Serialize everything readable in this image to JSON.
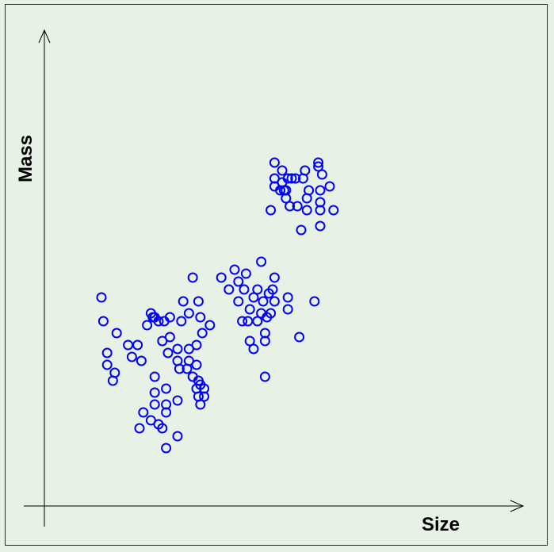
{
  "chart_data": {
    "type": "scatter",
    "xlabel": "Size",
    "ylabel": "Mass",
    "xlim": [
      0,
      10
    ],
    "ylim": [
      0,
      10
    ],
    "axis_ticks": "none",
    "axis_arrows": true,
    "grid": false,
    "legend": "none",
    "marker": "open-circle",
    "colors": {
      "marker": "#0000ff",
      "axis": "#000000",
      "background": "#e8f1e6",
      "frame": "#2a2a2a"
    },
    "points": [
      {
        "x": 1.0,
        "y": 4.9
      },
      {
        "x": 1.05,
        "y": 4.3
      },
      {
        "x": 1.15,
        "y": 3.5
      },
      {
        "x": 1.15,
        "y": 3.2
      },
      {
        "x": 1.3,
        "y": 2.8
      },
      {
        "x": 1.35,
        "y": 3.0
      },
      {
        "x": 1.4,
        "y": 4.0
      },
      {
        "x": 1.8,
        "y": 3.4
      },
      {
        "x": 1.95,
        "y": 3.7
      },
      {
        "x": 2.05,
        "y": 3.3
      },
      {
        "x": 2.2,
        "y": 4.2
      },
      {
        "x": 2.3,
        "y": 4.5
      },
      {
        "x": 2.35,
        "y": 4.4
      },
      {
        "x": 2.4,
        "y": 4.4
      },
      {
        "x": 2.5,
        "y": 4.3
      },
      {
        "x": 2.6,
        "y": 3.8
      },
      {
        "x": 2.65,
        "y": 4.3
      },
      {
        "x": 2.4,
        "y": 2.9
      },
      {
        "x": 2.4,
        "y": 2.5
      },
      {
        "x": 2.4,
        "y": 2.2
      },
      {
        "x": 2.5,
        "y": 1.7
      },
      {
        "x": 2.7,
        "y": 1.1
      },
      {
        "x": 2.7,
        "y": 2.2
      },
      {
        "x": 2.7,
        "y": 2.6
      },
      {
        "x": 2.75,
        "y": 3.5
      },
      {
        "x": 2.8,
        "y": 3.9
      },
      {
        "x": 2.8,
        "y": 4.4
      },
      {
        "x": 3.0,
        "y": 3.6
      },
      {
        "x": 3.0,
        "y": 3.3
      },
      {
        "x": 3.05,
        "y": 3.1
      },
      {
        "x": 3.0,
        "y": 2.3
      },
      {
        "x": 3.0,
        "y": 1.4
      },
      {
        "x": 3.1,
        "y": 4.3
      },
      {
        "x": 3.15,
        "y": 4.8
      },
      {
        "x": 3.3,
        "y": 4.5
      },
      {
        "x": 3.4,
        "y": 5.4
      },
      {
        "x": 3.5,
        "y": 3.2
      },
      {
        "x": 3.5,
        "y": 3.7
      },
      {
        "x": 3.55,
        "y": 4.8
      },
      {
        "x": 3.6,
        "y": 4.4
      },
      {
        "x": 3.6,
        "y": 2.7
      },
      {
        "x": 3.7,
        "y": 2.4
      },
      {
        "x": 3.7,
        "y": 2.6
      },
      {
        "x": 3.25,
        "y": 3.1
      },
      {
        "x": 3.3,
        "y": 3.3
      },
      {
        "x": 3.4,
        "y": 2.9
      },
      {
        "x": 3.5,
        "y": 2.6
      },
      {
        "x": 3.55,
        "y": 2.4
      },
      {
        "x": 3.6,
        "y": 2.2
      },
      {
        "x": 3.65,
        "y": 4.0
      },
      {
        "x": 3.85,
        "y": 4.2
      },
      {
        "x": 3.55,
        "y": 2.8
      },
      {
        "x": 3.3,
        "y": 3.6
      },
      {
        "x": 1.7,
        "y": 3.7
      },
      {
        "x": 2.1,
        "y": 2.0
      },
      {
        "x": 2.0,
        "y": 1.6
      },
      {
        "x": 2.3,
        "y": 1.8
      },
      {
        "x": 2.6,
        "y": 1.6
      },
      {
        "x": 2.7,
        "y": 2.0
      },
      {
        "x": 4.15,
        "y": 5.4
      },
      {
        "x": 4.35,
        "y": 5.1
      },
      {
        "x": 4.5,
        "y": 5.6
      },
      {
        "x": 4.6,
        "y": 5.3
      },
      {
        "x": 4.6,
        "y": 4.8
      },
      {
        "x": 4.7,
        "y": 4.3
      },
      {
        "x": 4.75,
        "y": 5.1
      },
      {
        "x": 4.8,
        "y": 5.5
      },
      {
        "x": 4.85,
        "y": 4.3
      },
      {
        "x": 4.9,
        "y": 3.8
      },
      {
        "x": 4.9,
        "y": 4.6
      },
      {
        "x": 5.0,
        "y": 3.6
      },
      {
        "x": 5.0,
        "y": 4.9
      },
      {
        "x": 5.1,
        "y": 4.3
      },
      {
        "x": 5.1,
        "y": 5.1
      },
      {
        "x": 5.2,
        "y": 4.5
      },
      {
        "x": 5.2,
        "y": 5.8
      },
      {
        "x": 5.25,
        "y": 4.8
      },
      {
        "x": 5.3,
        "y": 3.8
      },
      {
        "x": 5.35,
        "y": 4.4
      },
      {
        "x": 5.4,
        "y": 5.0
      },
      {
        "x": 5.45,
        "y": 4.5
      },
      {
        "x": 5.5,
        "y": 5.1
      },
      {
        "x": 5.55,
        "y": 5.4
      },
      {
        "x": 5.55,
        "y": 4.8
      },
      {
        "x": 5.9,
        "y": 4.6
      },
      {
        "x": 5.9,
        "y": 4.9
      },
      {
        "x": 6.2,
        "y": 3.9
      },
      {
        "x": 6.6,
        "y": 4.8
      },
      {
        "x": 5.3,
        "y": 4.0
      },
      {
        "x": 5.3,
        "y": 2.9
      },
      {
        "x": 5.45,
        "y": 7.1
      },
      {
        "x": 5.55,
        "y": 7.9
      },
      {
        "x": 5.7,
        "y": 7.6
      },
      {
        "x": 5.75,
        "y": 8.1
      },
      {
        "x": 5.75,
        "y": 7.8
      },
      {
        "x": 5.8,
        "y": 7.6
      },
      {
        "x": 5.85,
        "y": 7.6
      },
      {
        "x": 5.85,
        "y": 7.4
      },
      {
        "x": 5.9,
        "y": 7.9
      },
      {
        "x": 5.95,
        "y": 7.2
      },
      {
        "x": 6.0,
        "y": 7.9
      },
      {
        "x": 6.1,
        "y": 7.9
      },
      {
        "x": 6.15,
        "y": 7.2
      },
      {
        "x": 6.25,
        "y": 6.6
      },
      {
        "x": 6.3,
        "y": 7.9
      },
      {
        "x": 6.35,
        "y": 8.1
      },
      {
        "x": 6.4,
        "y": 7.4
      },
      {
        "x": 6.4,
        "y": 7.1
      },
      {
        "x": 6.45,
        "y": 7.6
      },
      {
        "x": 6.7,
        "y": 8.2
      },
      {
        "x": 6.75,
        "y": 7.6
      },
      {
        "x": 6.75,
        "y": 7.3
      },
      {
        "x": 6.75,
        "y": 7.1
      },
      {
        "x": 6.75,
        "y": 6.7
      },
      {
        "x": 6.8,
        "y": 8.0
      },
      {
        "x": 7.0,
        "y": 7.7
      },
      {
        "x": 7.1,
        "y": 7.1
      },
      {
        "x": 6.7,
        "y": 8.3
      },
      {
        "x": 5.55,
        "y": 8.3
      },
      {
        "x": 5.55,
        "y": 7.7
      }
    ]
  }
}
